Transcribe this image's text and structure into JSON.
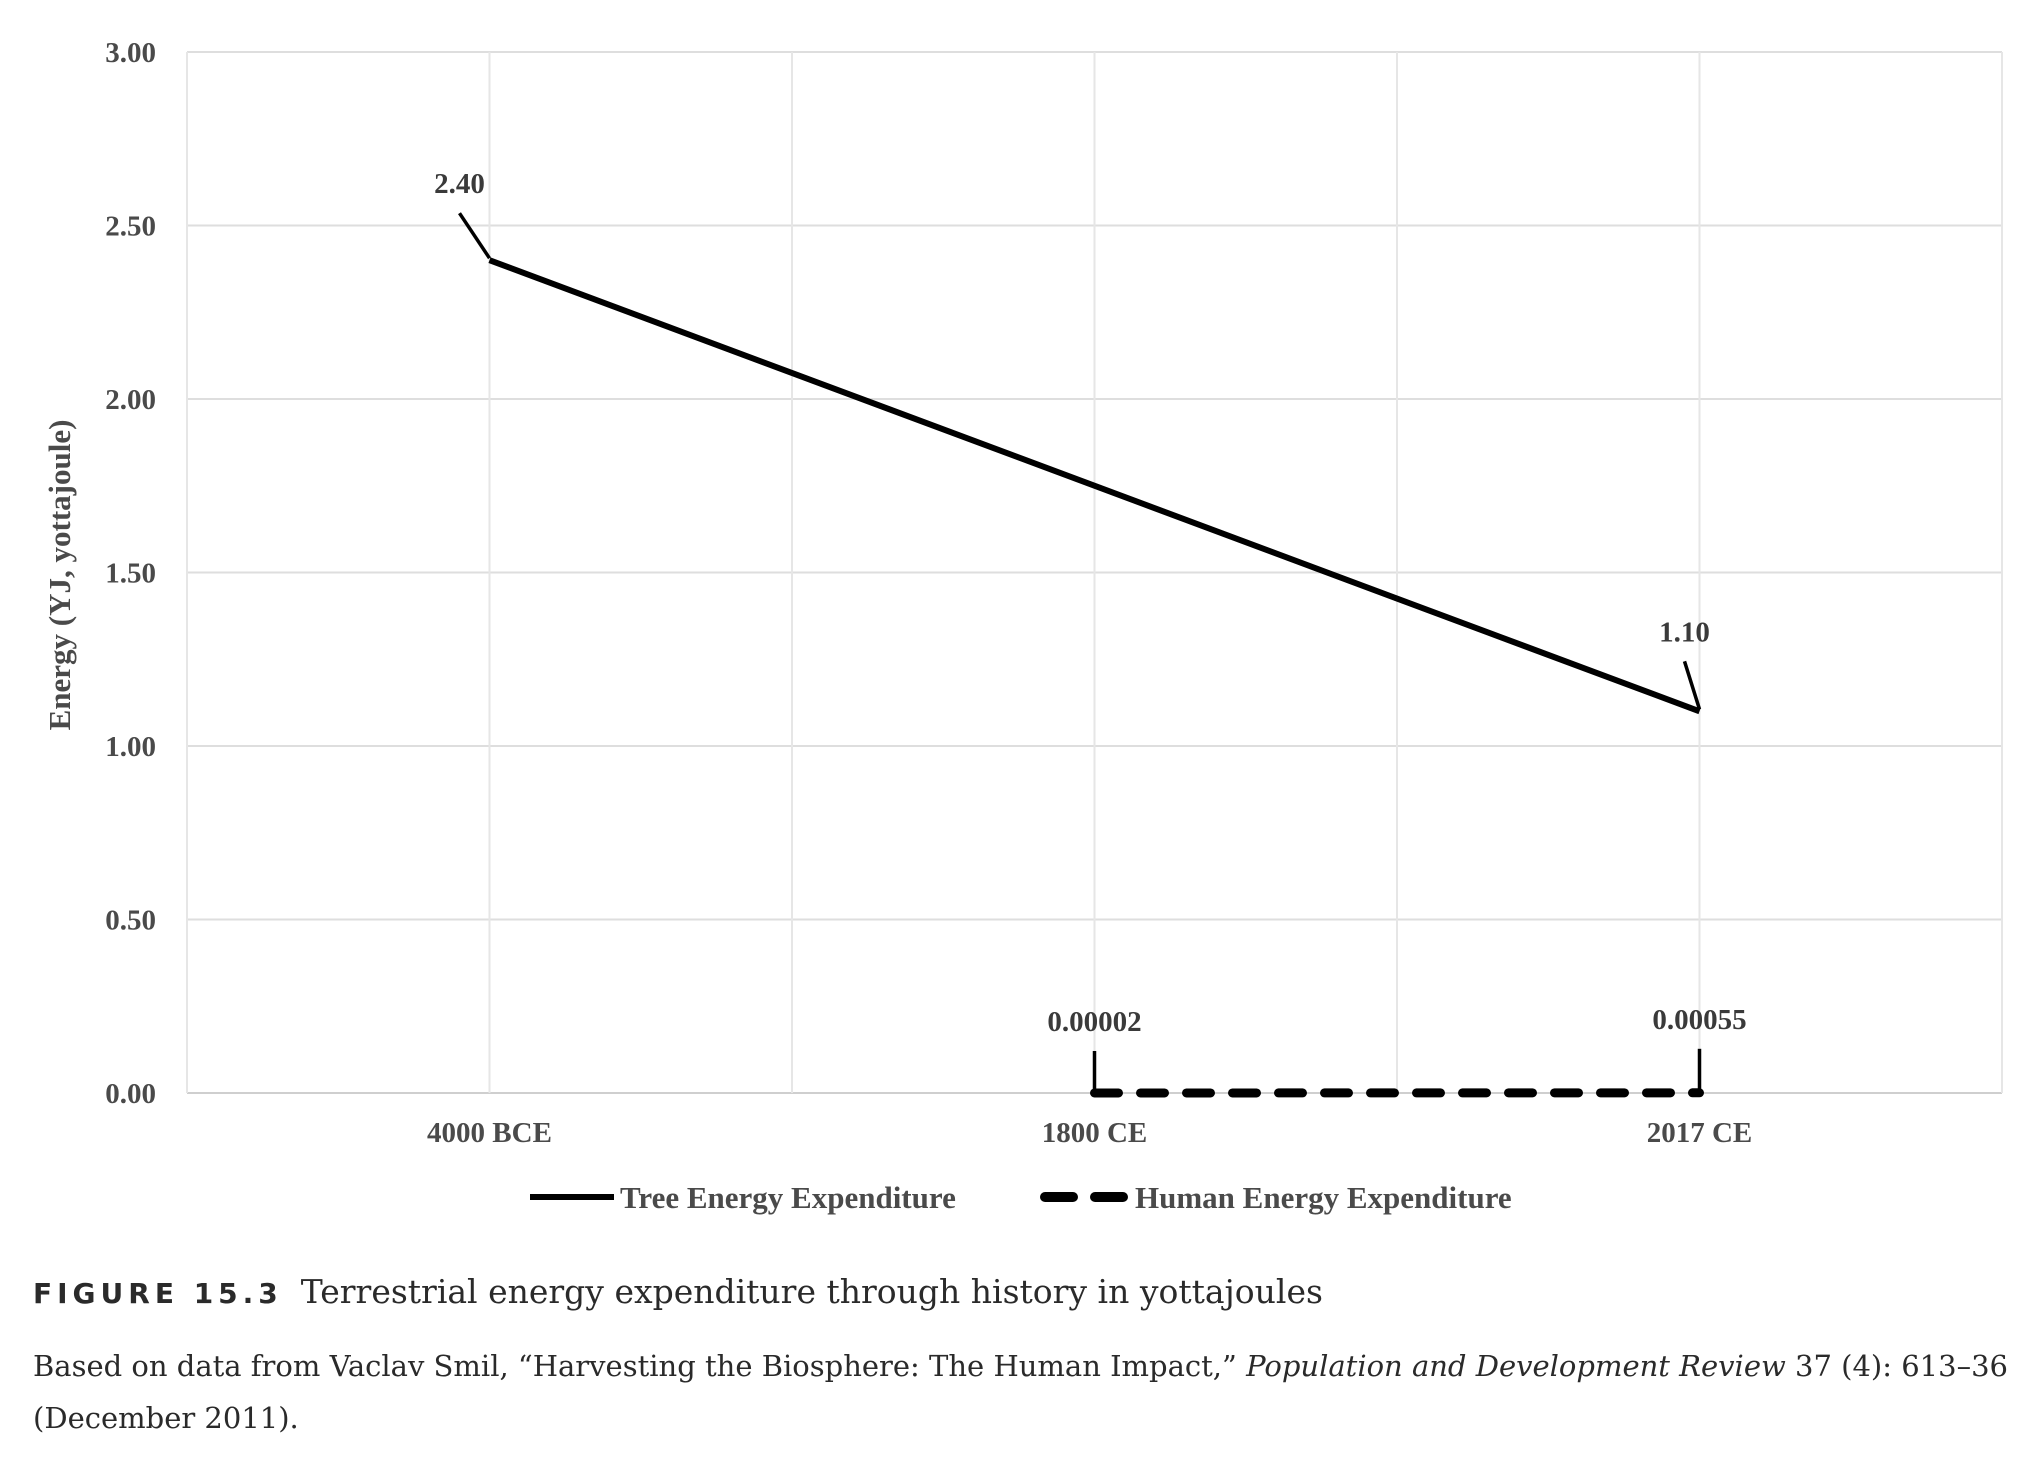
{
  "chart_data": {
    "type": "line",
    "categories": [
      "4000 BCE",
      "1800 CE",
      "2017 CE"
    ],
    "ylabel": "Energy (YJ, yottajoule)",
    "xlabel": "",
    "ylim": [
      0,
      3
    ],
    "yticks": [
      "0.00",
      "0.50",
      "1.00",
      "1.50",
      "2.00",
      "2.50",
      "3.00"
    ],
    "grid": true,
    "legend_position": "bottom",
    "series": [
      {
        "name": "Tree Energy Expenditure",
        "style": "solid",
        "color": "#000000",
        "points": [
          {
            "x": "4000 BCE",
            "y": 2.4,
            "label": "2.40"
          },
          {
            "x": "2017 CE",
            "y": 1.1,
            "label": "1.10"
          }
        ]
      },
      {
        "name": "Human Energy Expenditure",
        "style": "dashed",
        "color": "#000000",
        "points": [
          {
            "x": "1800 CE",
            "y": 2e-05,
            "label": "0.00002"
          },
          {
            "x": "2017 CE",
            "y": 0.00055,
            "label": "0.00055"
          }
        ]
      }
    ]
  },
  "caption": {
    "figure_label": "FIGURE 15.3",
    "title": "Terrestrial energy expenditure through history in yottajoules",
    "source_before": "Based on data from Vaclav Smil, “Harvesting the Biosphere: The Human Impact,” ",
    "source_journal": "Population and Development Review",
    "source_after": " 37 (4): 613–36 (December 2011)."
  }
}
